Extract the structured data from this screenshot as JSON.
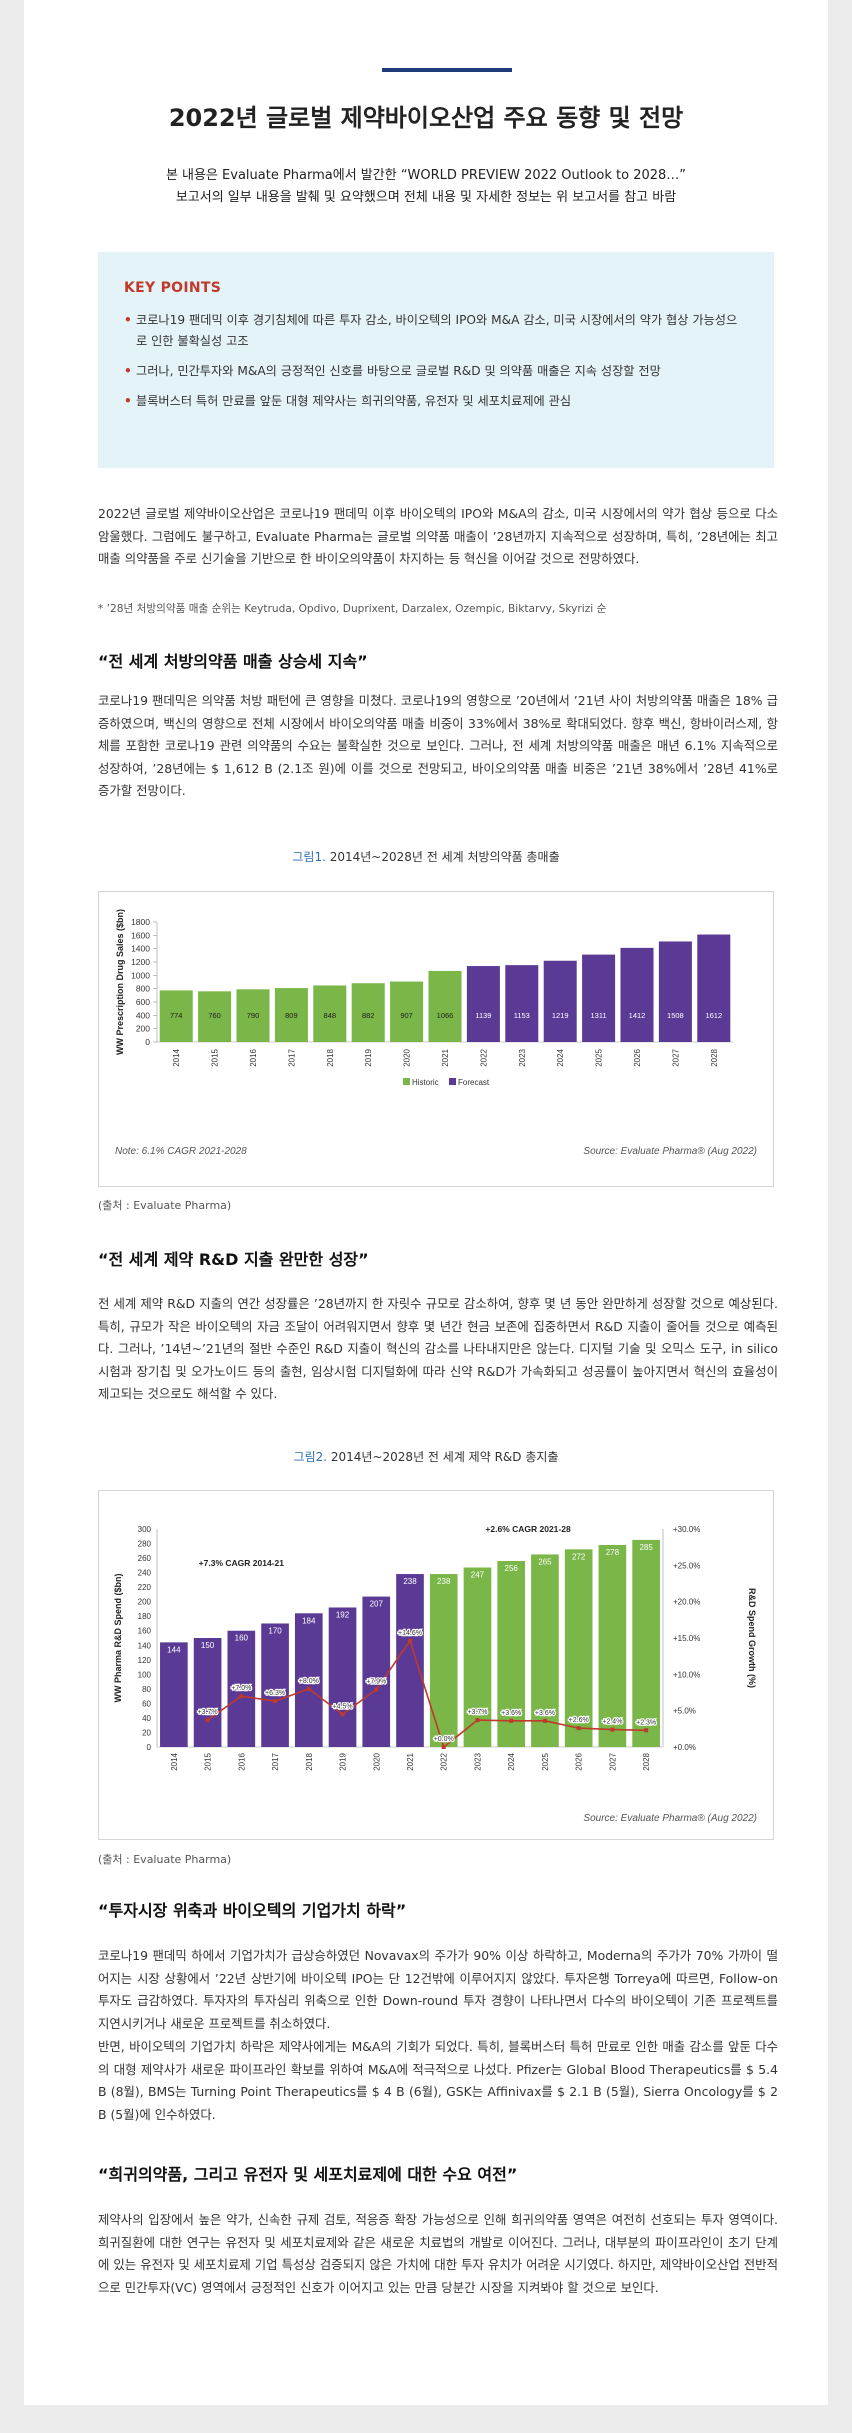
{
  "title": "2022년 글로벌 제약바이오산업 주요 동향 및 전망",
  "intro": {
    "line1": "본 내용은 Evaluate Pharma에서 발간한 “WORLD PREVIEW 2022 Outlook to 2028…”",
    "line2": "보고서의 일부 내용을 발췌 및 요약했으며 전체 내용 및 자세한 정보는 위 보고서를 참고 바람"
  },
  "key_points": {
    "heading": "KEY POINTS",
    "items": [
      "코로나19 팬데믹 이후 경기침체에 따른 투자 감소, 바이오텍의 IPO와 M&A 감소, 미국 시장에서의 약가 협상 가능성으로 인한 불확실성 고조",
      "그러나, 민간투자와 M&A의 긍정적인 신호를 바탕으로 글로벌 R&D 및 의약품 매출은 지속 성장할 전망",
      "블록버스터 특허 만료를 앞둔 대형 제약사는 희귀의약품, 유전자 및 세포치료제에 관심"
    ]
  },
  "p1": "2022년 글로벌 제약바이오산업은 코로나19 팬데믹 이후 바이오텍의 IPO와 M&A의 감소, 미국 시장에서의 약가 협상 등으로 다소 암울했다. 그럼에도 불구하고, Evaluate Pharma는 글로벌 의약품 매출이 ’28년까지 지속적으로 성장하며, 특히, ’28년에는 최고 매출 의약품을 주로 신기술을 기반으로 한 바이오의약품이 차지하는 등 혁신을 이어갈 것으로 전망하였다.",
  "p1_note": "* ’28년 처방의약품 매출 순위는 Keytruda, Opdivo, Duprixent, Darzalex, Ozempic, Biktarvy, Skyrizi 순",
  "s1": {
    "heading": "“전 세계 처방의약품 매출 상승세 지속”",
    "text": "코로나19 팬데믹은 의약품 처방 패턴에 큰 영향을 미쳤다. 코로나19의 영향으로 ’20년에서 ’21년 사이 처방의약품 매출은 18% 급증하였으며, 백신의 영향으로 전체 시장에서 바이오의약품 매출 비중이 33%에서 38%로 확대되었다. 향후 백신, 항바이러스제, 항체를 포함한 코로나19 관련 의약품의 수요는 불확실한 것으로 보인다. 그러나, 전 세계 처방의약품 매출은 매년 6.1% 지속적으로 성장하여, ’28년에는 $ 1,612 B (2.1조 원)에 이를 것으로 전망되고, 바이오의약품 매출 비중은 ’21년 38%에서 ’28년 41%로 증가할 전망이다.",
    "fig_num": "그림1.",
    "fig_title": " 2014년~2028년 전 세계 처방의약품 총매출",
    "source": "(출처 : Evaluate Pharma)"
  },
  "s2": {
    "heading": "“전 세계 제약 R&D 지출 완만한 성장”",
    "text": "전 세계 제약 R&D 지출의 연간 성장률은 ’28년까지 한 자릿수 규모로 감소하여, 향후 몇 년 동안 완만하게 성장할 것으로 예상된다. 특히, 규모가 작은 바이오텍의 자금 조달이 어려워지면서 향후 몇 년간 현금 보존에 집중하면서 R&D 지출이 줄어들 것으로 예측된다. 그러나, ’14년~’21년의 절반 수준인 R&D 지출이 혁신의 감소를 나타내지만은 않는다. 디지털 기술 및 오믹스 도구, in silico 시험과 장기칩 및 오가노이드 등의 출현, 임상시험 디지털화에 따라 신약 R&D가 가속화되고 성공률이 높아지면서 혁신의 효율성이 제고되는 것으로도 해석할 수 있다.",
    "fig_num": "그림2.",
    "fig_title": " 2014년~2028년 전 세계 제약 R&D 총지출",
    "source": "(출처 : Evaluate Pharma)"
  },
  "s3": {
    "heading": "“투자시장 위축과 바이오텍의 기업가치 하락”",
    "text": "코로나19 팬데믹 하에서 기업가치가 급상승하였던 Novavax의 주가가 90% 이상 하락하고, Moderna의 주가가 70% 가까이 떨어지는 시장 상황에서 ’22년 상반기에 바이오텍 IPO는 단 12건밖에 이루어지지 않았다. 투자은행 Torreya에 따르면, Follow-on 투자도 급감하였다. 투자자의 투자심리 위축으로 인한 Down-round 투자 경향이 나타나면서 다수의 바이오텍이 기존 프로젝트를 지연시키거나 새로운 프로젝트를 취소하였다.",
    "text2": "반면, 바이오텍의 기업가치 하락은 제약사에게는 M&A의 기회가 되었다. 특히, 블록버스터 특허 만료로 인한 매출 감소를 앞둔 다수의 대형 제약사가 새로운 파이프라인 확보를 위하여 M&A에 적극적으로 나섰다. Pfizer는 Global Blood Therapeutics를 $ 5.4 B (8월), BMS는 Turning Point Therapeutics를 $ 4 B (6월), GSK는 Affinivax를 $ 2.1 B (5월), Sierra Oncology를 $ 2 B (5월)에 인수하였다."
  },
  "s4": {
    "heading": "“희귀의약품, 그리고 유전자 및 세포치료제에 대한 수요 여전”",
    "text": "제약사의 입장에서 높은 약가, 신속한 규제 검토, 적응증 확장 가능성으로 인해 희귀의약품 영역은 여전히 선호되는 투자 영역이다. 희귀질환에 대한 연구는 유전자 및 세포치료제와 같은 새로운 치료법의 개발로 이어진다. 그러나, 대부분의 파이프라인이 초기 단계에 있는 유전자 및 세포치료제 기업 특성상 검증되지 않은 가치에 대한 투자 유치가 어려운 시기였다. 하지만, 제약바이오산업 전반적으로 민간투자(VC) 영역에서 긍정적인 신호가 이어지고 있는 만큼 당분간 시장을 지켜봐야 할 것으로 보인다."
  },
  "chart_data": [
    {
      "type": "bar",
      "ylabel": "WW Prescription Drug Sales ($bn)",
      "categories": [
        "2014",
        "2015",
        "2016",
        "2017",
        "2018",
        "2019",
        "2020",
        "2021",
        "2022",
        "2023",
        "2024",
        "2025",
        "2026",
        "2027",
        "2028"
      ],
      "values": [
        774,
        760,
        790,
        809,
        848,
        882,
        907,
        1066,
        1139,
        1153,
        1219,
        1311,
        1412,
        1508,
        1612
      ],
      "status": [
        "Historic",
        "Historic",
        "Historic",
        "Historic",
        "Historic",
        "Historic",
        "Historic",
        "Historic",
        "Forecast",
        "Forecast",
        "Forecast",
        "Forecast",
        "Forecast",
        "Forecast",
        "Forecast"
      ],
      "ylim": [
        0,
        1800
      ],
      "yticks": [
        0,
        200,
        400,
        600,
        800,
        1000,
        1200,
        1400,
        1600,
        1800
      ],
      "legend": [
        "Historic",
        "Forecast"
      ],
      "colors": {
        "Historic": "#7ab648",
        "Forecast": "#5b3a95"
      },
      "note": "Note: 6.1% CAGR 2021-2028",
      "source": "Source: Evaluate Pharma® (Aug 2022)"
    },
    {
      "type": "bar",
      "ylabel": "WW Pharma R&D Spend ($bn)",
      "y2label": "R&D Spend Growth (%)",
      "categories": [
        "2014",
        "2015",
        "2016",
        "2017",
        "2018",
        "2019",
        "2020",
        "2021",
        "2022",
        "2023",
        "2024",
        "2025",
        "2026",
        "2027",
        "2028"
      ],
      "values": [
        144,
        150,
        160,
        170,
        184,
        192,
        207,
        238,
        238,
        247,
        256,
        265,
        272,
        278,
        285
      ],
      "status": [
        "Historic",
        "Historic",
        "Historic",
        "Historic",
        "Historic",
        "Historic",
        "Historic",
        "Historic",
        "Forecast",
        "Forecast",
        "Forecast",
        "Forecast",
        "Forecast",
        "Forecast",
        "Forecast"
      ],
      "growth": [
        null,
        3.7,
        7.0,
        6.3,
        8.0,
        4.5,
        7.9,
        14.6,
        0.0,
        3.7,
        3.6,
        3.6,
        2.6,
        2.4,
        2.3
      ],
      "growth_labels": [
        "",
        "+3.7%",
        "+7.0%",
        "+6.3%",
        "+8.0%",
        "+4.5%",
        "+7.9%",
        "+14.6%",
        "+0.0%",
        "+3.7%",
        "+3.6%",
        "+3.6%",
        "+2.6%",
        "+2.4%",
        "+2.3%"
      ],
      "ylim": [
        0,
        300
      ],
      "yticks": [
        0,
        20,
        40,
        60,
        80,
        100,
        120,
        140,
        160,
        180,
        200,
        220,
        240,
        260,
        280,
        300
      ],
      "y2ticks": [
        "+0.0%",
        "+5.0%",
        "+10.0%",
        "+15.0%",
        "+20.0%",
        "+25.0%",
        "+30.0%"
      ],
      "y2lim": [
        0,
        30
      ],
      "annotations": [
        "+7.3% CAGR 2014-21",
        "+2.6% CAGR 2021-28"
      ],
      "colors": {
        "Historic": "#5b3a95",
        "Forecast": "#7ab648",
        "line": "#c0392b"
      },
      "source": "Source: Evaluate Pharma® (Aug 2022)"
    }
  ]
}
